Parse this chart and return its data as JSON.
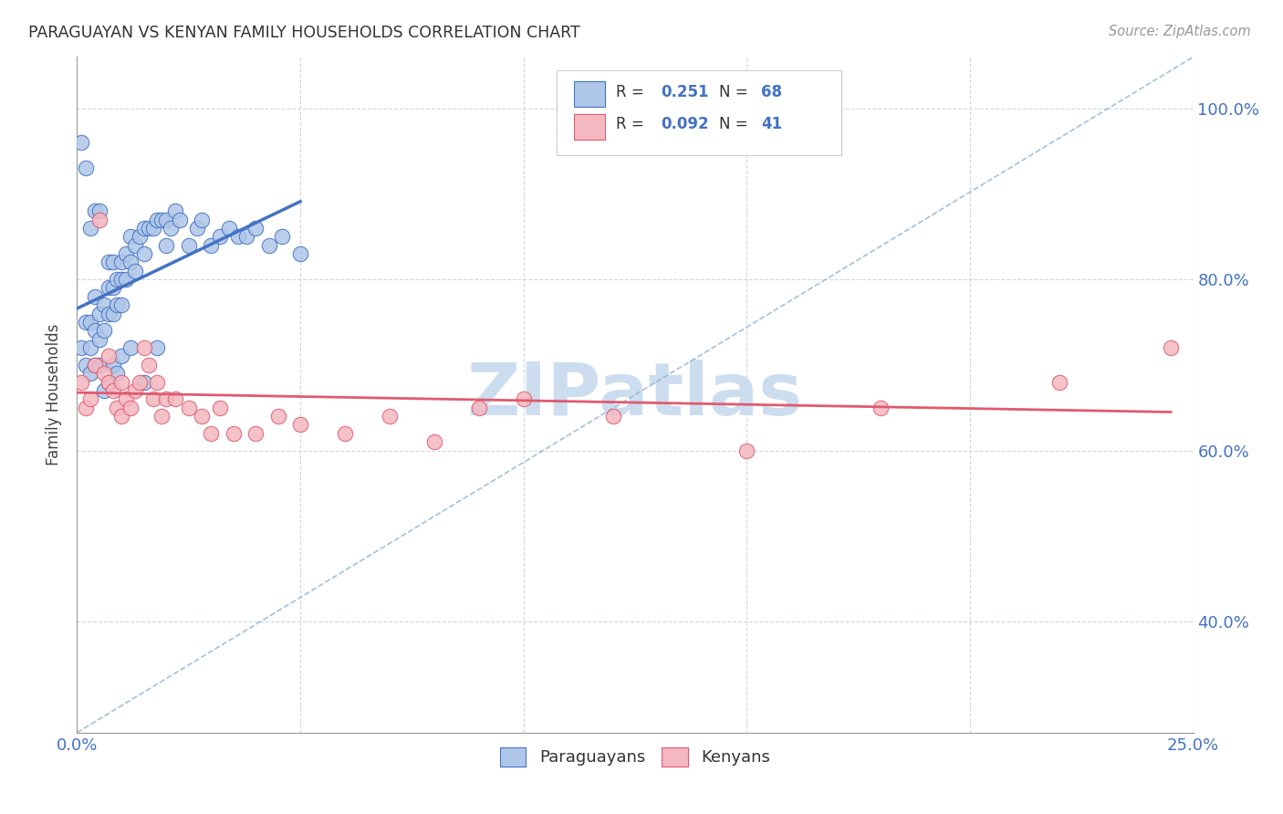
{
  "title": "PARAGUAYAN VS KENYAN FAMILY HOUSEHOLDS CORRELATION CHART",
  "source": "Source: ZipAtlas.com",
  "ylabel": "Family Households",
  "ytick_values": [
    0.4,
    0.6,
    0.8,
    1.0
  ],
  "ytick_labels": [
    "40.0%",
    "60.0%",
    "80.0%",
    "100.0%"
  ],
  "xlim": [
    0.0,
    0.25
  ],
  "ylim": [
    0.27,
    1.06
  ],
  "xtick_labels": [
    "0.0%",
    "",
    "",
    "",
    "",
    "25.0%"
  ],
  "xtick_values": [
    0.0,
    0.05,
    0.1,
    0.15,
    0.2,
    0.25
  ],
  "legend_entries": [
    {
      "R": "0.251",
      "N": "68",
      "face": "#aec6e8",
      "edge": "#4472c4"
    },
    {
      "R": "0.092",
      "N": "41",
      "face": "#f4b8c1",
      "edge": "#e05a6e"
    }
  ],
  "legend_bottom": [
    "Paraguayans",
    "Kenyans"
  ],
  "legend_bottom_colors_face": [
    "#aec6e8",
    "#f4b8c1"
  ],
  "legend_bottom_colors_edge": [
    "#4472c4",
    "#e05a6e"
  ],
  "par_color_face": "#aec6e8",
  "par_color_edge": "#4472c4",
  "ken_color_face": "#f4b8c1",
  "ken_color_edge": "#e05a6e",
  "par_line_color": "#4472c4",
  "ken_line_color": "#e05a6e",
  "dashed_color": "#8ab0d8",
  "watermark": "ZIPatlas",
  "watermark_color": "#ccddf0",
  "background_color": "#ffffff",
  "grid_color": "#c8d4dc",
  "par_x": [
    0.001,
    0.001,
    0.002,
    0.002,
    0.003,
    0.003,
    0.003,
    0.004,
    0.004,
    0.004,
    0.005,
    0.005,
    0.005,
    0.006,
    0.006,
    0.007,
    0.007,
    0.007,
    0.008,
    0.008,
    0.008,
    0.009,
    0.009,
    0.01,
    0.01,
    0.01,
    0.011,
    0.011,
    0.012,
    0.012,
    0.013,
    0.013,
    0.014,
    0.015,
    0.015,
    0.016,
    0.017,
    0.018,
    0.019,
    0.02,
    0.02,
    0.021,
    0.022,
    0.023,
    0.025,
    0.027,
    0.028,
    0.03,
    0.032,
    0.034,
    0.036,
    0.038,
    0.04,
    0.043,
    0.046,
    0.05,
    0.002,
    0.003,
    0.004,
    0.005,
    0.006,
    0.007,
    0.008,
    0.009,
    0.01,
    0.012,
    0.015,
    0.018
  ],
  "par_y": [
    0.96,
    0.72,
    0.75,
    0.7,
    0.75,
    0.72,
    0.69,
    0.78,
    0.74,
    0.7,
    0.76,
    0.73,
    0.7,
    0.77,
    0.74,
    0.82,
    0.79,
    0.76,
    0.82,
    0.79,
    0.76,
    0.8,
    0.77,
    0.82,
    0.8,
    0.77,
    0.83,
    0.8,
    0.85,
    0.82,
    0.84,
    0.81,
    0.85,
    0.86,
    0.83,
    0.86,
    0.86,
    0.87,
    0.87,
    0.87,
    0.84,
    0.86,
    0.88,
    0.87,
    0.84,
    0.86,
    0.87,
    0.84,
    0.85,
    0.86,
    0.85,
    0.85,
    0.86,
    0.84,
    0.85,
    0.83,
    0.93,
    0.86,
    0.88,
    0.88,
    0.67,
    0.68,
    0.7,
    0.69,
    0.71,
    0.72,
    0.68,
    0.72
  ],
  "ken_x": [
    0.001,
    0.002,
    0.003,
    0.004,
    0.005,
    0.006,
    0.007,
    0.007,
    0.008,
    0.009,
    0.01,
    0.01,
    0.011,
    0.012,
    0.013,
    0.014,
    0.015,
    0.016,
    0.017,
    0.018,
    0.019,
    0.02,
    0.022,
    0.025,
    0.028,
    0.03,
    0.032,
    0.035,
    0.04,
    0.045,
    0.05,
    0.06,
    0.07,
    0.08,
    0.09,
    0.1,
    0.12,
    0.15,
    0.18,
    0.22,
    0.245
  ],
  "ken_y": [
    0.68,
    0.65,
    0.66,
    0.7,
    0.87,
    0.69,
    0.68,
    0.71,
    0.67,
    0.65,
    0.64,
    0.68,
    0.66,
    0.65,
    0.67,
    0.68,
    0.72,
    0.7,
    0.66,
    0.68,
    0.64,
    0.66,
    0.66,
    0.65,
    0.64,
    0.62,
    0.65,
    0.62,
    0.62,
    0.64,
    0.63,
    0.62,
    0.64,
    0.61,
    0.65,
    0.66,
    0.64,
    0.6,
    0.65,
    0.68,
    0.72
  ]
}
